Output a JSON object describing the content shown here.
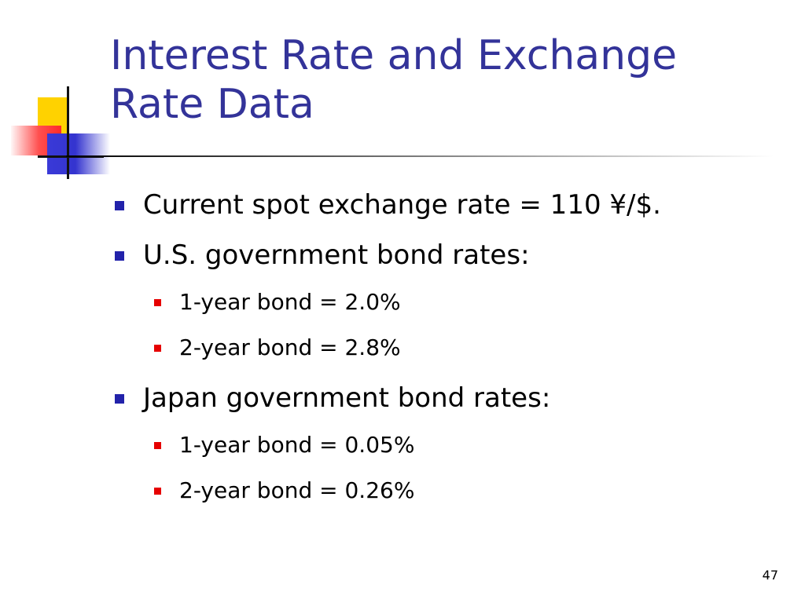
{
  "slide": {
    "title_lines": [
      "Interest Rate and Exchange",
      "Rate Data"
    ],
    "bullets": [
      "Current spot exchange rate = 110 ¥/$.",
      "U.S. government bond rates:",
      "Japan government bond rates:"
    ],
    "us_bonds": [
      "1-year bond = 2.0%",
      "2-year bond = 2.8%"
    ],
    "japan_bonds": [
      "1-year bond = 0.05%",
      "2-year bond = 0.26%"
    ],
    "page_number": "47"
  },
  "colors": {
    "title": "#333399",
    "level1_bullet": "#2222aa",
    "level2_bullet": "#e60000",
    "deco_yellow": "#ffd200",
    "deco_red": "#ff3030",
    "deco_blue": "#3434cf"
  }
}
